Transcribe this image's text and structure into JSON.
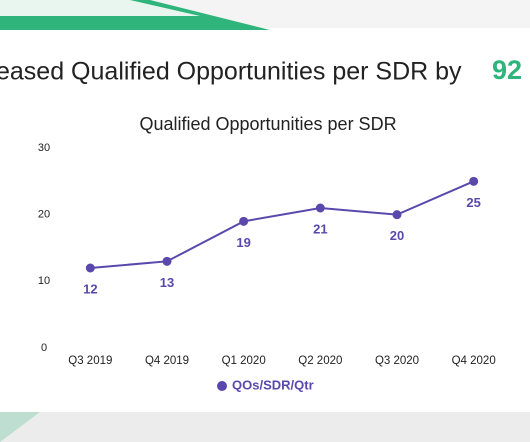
{
  "headline": {
    "text": "eased Qualified Opportunities per SDR by",
    "highlight": "92"
  },
  "chart_data": {
    "type": "line",
    "title": "Qualified Opportunities per SDR",
    "categories": [
      "Q3 2019",
      "Q4 2019",
      "Q1 2020",
      "Q2 2020",
      "Q3 2020",
      "Q4 2020"
    ],
    "series": [
      {
        "name": "QOs/SDR/Qtr",
        "color": "#5a48ad",
        "values": [
          12,
          13,
          19,
          21,
          20,
          25
        ]
      }
    ],
    "ylim": [
      0,
      30
    ],
    "yticks": [
      0,
      10,
      20,
      30
    ],
    "grid": false,
    "legend": "bottom"
  }
}
